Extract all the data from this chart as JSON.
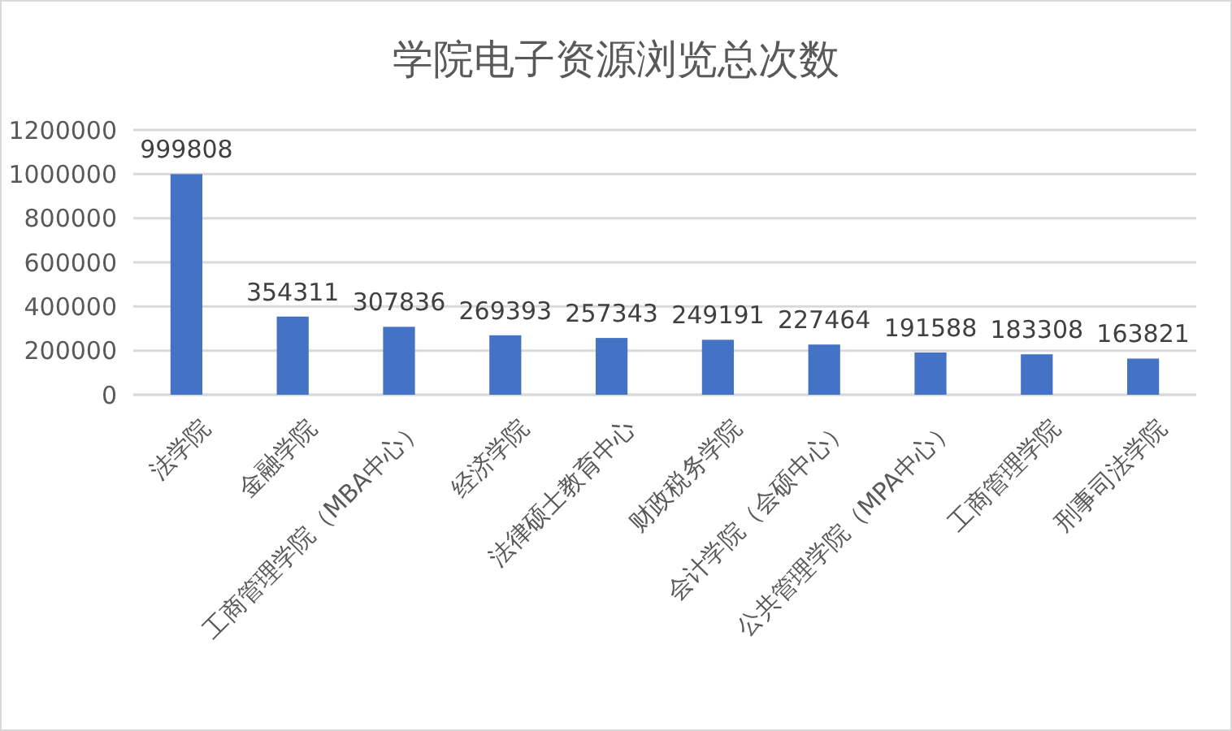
{
  "chart_data": {
    "type": "bar",
    "title": "学院电子资源浏览总次数",
    "categories": [
      "法学院",
      "金融学院",
      "工商管理学院（MBA中心）",
      "经济学院",
      "法律硕士教育中心",
      "财政税务学院",
      "会计学院（会硕中心）",
      "公共管理学院（MPA中心）",
      "工商管理学院",
      "刑事司法学院"
    ],
    "values": [
      999808,
      354311,
      307836,
      269393,
      257343,
      249191,
      227464,
      191588,
      183308,
      163821
    ],
    "color": "#4472c4",
    "ylim": [
      0,
      1200000
    ],
    "yticks": [
      0,
      200000,
      400000,
      600000,
      800000,
      1000000,
      1200000
    ],
    "grid": "y",
    "data_labels": true
  }
}
